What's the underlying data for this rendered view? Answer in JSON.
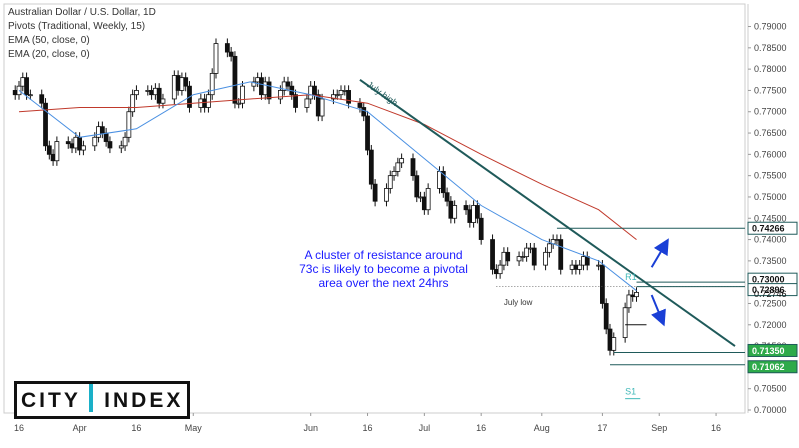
{
  "legend": {
    "symbol": "Australian Dollar / U.S. Dollar, 1D",
    "pivots": "Pivots (Traditional, Weekly, 15)",
    "ema50": "EMA (50, close, 0)",
    "ema20": "EMA (20, close, 0)"
  },
  "annotation_text": "A cluster of resistance around 73c is likely to become a pivotal area over the next 24hrs",
  "logo": {
    "word1": "CITY",
    "word2": "INDEX"
  },
  "colors": {
    "bull": "#ffffff",
    "bear": "#111111",
    "ema50": "#c0392b",
    "ema20": "#4a90e2",
    "trend": "#1f5a5a",
    "level_box": "#1f5a5a",
    "note": "#1a1aff",
    "arrow": "#1a3fd6",
    "pivot_label": "#3fb8b8"
  },
  "chart_data": {
    "type": "candlestick",
    "title": "Australian Dollar / U.S. Dollar, 1D",
    "y_range": [
      0.7,
      0.792
    ],
    "y_ticks": [
      "0.79000",
      "0.78500",
      "0.78000",
      "0.77500",
      "0.77000",
      "0.76500",
      "0.76000",
      "0.75500",
      "0.75000",
      "0.74500",
      "0.74000",
      "0.73500",
      "0.73000",
      "0.72500",
      "0.72000",
      "0.71500",
      "0.71000",
      "0.70500",
      "0.70000"
    ],
    "x_ticks": [
      {
        "date": "2021-03-16",
        "label": "16"
      },
      {
        "date": "2021-04-01",
        "label": "Apr"
      },
      {
        "date": "2021-04-16",
        "label": "16"
      },
      {
        "date": "2021-05-01",
        "label": "May"
      },
      {
        "date": "2021-06-01",
        "label": "Jun"
      },
      {
        "date": "2021-06-16",
        "label": "16"
      },
      {
        "date": "2021-07-01",
        "label": "Jul"
      },
      {
        "date": "2021-07-16",
        "label": "16"
      },
      {
        "date": "2021-08-01",
        "label": "Aug"
      },
      {
        "date": "2021-08-17",
        "label": "17"
      },
      {
        "date": "2021-09-01",
        "label": "Sep"
      },
      {
        "date": "2021-09-16",
        "label": "16"
      }
    ],
    "x_range": [
      "2021-03-16",
      "2021-09-21"
    ],
    "close_series": [
      [
        "2021-03-12",
        0.775
      ],
      [
        "2021-03-15",
        0.774
      ],
      [
        "2021-03-16",
        0.776
      ],
      [
        "2021-03-17",
        0.778
      ],
      [
        "2021-03-18",
        0.774
      ],
      [
        "2021-03-19",
        0.774
      ],
      [
        "2021-03-22",
        0.772
      ],
      [
        "2021-03-23",
        0.762
      ],
      [
        "2021-03-24",
        0.76
      ],
      [
        "2021-03-25",
        0.7585
      ],
      [
        "2021-03-26",
        0.763
      ],
      [
        "2021-03-29",
        0.7625
      ],
      [
        "2021-03-30",
        0.7615
      ],
      [
        "2021-03-31",
        0.764
      ],
      [
        "2021-04-01",
        0.761
      ],
      [
        "2021-04-02",
        0.762
      ],
      [
        "2021-04-05",
        0.764
      ],
      [
        "2021-04-06",
        0.7665
      ],
      [
        "2021-04-07",
        0.765
      ],
      [
        "2021-04-08",
        0.763
      ],
      [
        "2021-04-09",
        0.7615
      ],
      [
        "2021-04-12",
        0.762
      ],
      [
        "2021-04-13",
        0.764
      ],
      [
        "2021-04-14",
        0.77
      ],
      [
        "2021-04-15",
        0.774
      ],
      [
        "2021-04-16",
        0.775
      ],
      [
        "2021-04-19",
        0.775
      ],
      [
        "2021-04-20",
        0.774
      ],
      [
        "2021-04-21",
        0.7755
      ],
      [
        "2021-04-22",
        0.772
      ],
      [
        "2021-04-23",
        0.773
      ],
      [
        "2021-04-26",
        0.7785
      ],
      [
        "2021-04-27",
        0.775
      ],
      [
        "2021-04-28",
        0.778
      ],
      [
        "2021-04-29",
        0.776
      ],
      [
        "2021-04-30",
        0.771
      ],
      [
        "2021-05-03",
        0.773
      ],
      [
        "2021-05-04",
        0.771
      ],
      [
        "2021-05-05",
        0.774
      ],
      [
        "2021-05-06",
        0.779
      ],
      [
        "2021-05-07",
        0.786
      ],
      [
        "2021-05-10",
        0.784
      ],
      [
        "2021-05-11",
        0.783
      ],
      [
        "2021-05-12",
        0.772
      ],
      [
        "2021-05-13",
        0.772
      ],
      [
        "2021-05-14",
        0.776
      ],
      [
        "2021-05-17",
        0.777
      ],
      [
        "2021-05-18",
        0.778
      ],
      [
        "2021-05-19",
        0.774
      ],
      [
        "2021-05-20",
        0.777
      ],
      [
        "2021-05-21",
        0.773
      ],
      [
        "2021-05-24",
        0.775
      ],
      [
        "2021-05-25",
        0.777
      ],
      [
        "2021-05-26",
        0.776
      ],
      [
        "2021-05-27",
        0.774
      ],
      [
        "2021-05-28",
        0.771
      ],
      [
        "2021-05-31",
        0.773
      ],
      [
        "2021-06-01",
        0.776
      ],
      [
        "2021-06-02",
        0.774
      ],
      [
        "2021-06-03",
        0.769
      ],
      [
        "2021-06-04",
        0.773
      ],
      [
        "2021-06-07",
        0.774
      ],
      [
        "2021-06-08",
        0.774
      ],
      [
        "2021-06-09",
        0.775
      ],
      [
        "2021-06-10",
        0.775
      ],
      [
        "2021-06-11",
        0.772
      ],
      [
        "2021-06-14",
        0.771
      ],
      [
        "2021-06-15",
        0.769
      ],
      [
        "2021-06-16",
        0.761
      ],
      [
        "2021-06-17",
        0.753
      ],
      [
        "2021-06-18",
        0.749
      ],
      [
        "2021-06-21",
        0.752
      ],
      [
        "2021-06-22",
        0.755
      ],
      [
        "2021-06-23",
        0.756
      ],
      [
        "2021-06-24",
        0.758
      ],
      [
        "2021-06-25",
        0.759
      ],
      [
        "2021-06-28",
        0.755
      ],
      [
        "2021-06-29",
        0.75
      ],
      [
        "2021-06-30",
        0.75
      ],
      [
        "2021-07-01",
        0.747
      ],
      [
        "2021-07-02",
        0.752
      ],
      [
        "2021-07-05",
        0.756
      ],
      [
        "2021-07-06",
        0.751
      ],
      [
        "2021-07-07",
        0.749
      ],
      [
        "2021-07-08",
        0.745
      ],
      [
        "2021-07-09",
        0.748
      ],
      [
        "2021-07-12",
        0.747
      ],
      [
        "2021-07-13",
        0.744
      ],
      [
        "2021-07-14",
        0.748
      ],
      [
        "2021-07-15",
        0.745
      ],
      [
        "2021-07-16",
        0.74
      ],
      [
        "2021-07-19",
        0.733
      ],
      [
        "2021-07-20",
        0.732
      ],
      [
        "2021-07-21",
        0.734
      ],
      [
        "2021-07-22",
        0.737
      ],
      [
        "2021-07-23",
        0.735
      ],
      [
        "2021-07-26",
        0.736
      ],
      [
        "2021-07-27",
        0.736
      ],
      [
        "2021-07-28",
        0.738
      ],
      [
        "2021-07-29",
        0.738
      ],
      [
        "2021-07-30",
        0.734
      ],
      [
        "2021-08-02",
        0.737
      ],
      [
        "2021-08-03",
        0.739
      ],
      [
        "2021-08-04",
        0.74
      ],
      [
        "2021-08-05",
        0.74
      ],
      [
        "2021-08-06",
        0.733
      ],
      [
        "2021-08-09",
        0.734
      ],
      [
        "2021-08-10",
        0.733
      ],
      [
        "2021-08-11",
        0.734
      ],
      [
        "2021-08-12",
        0.736
      ],
      [
        "2021-08-13",
        0.734
      ],
      [
        "2021-08-16",
        0.734
      ],
      [
        "2021-08-17",
        0.725
      ],
      [
        "2021-08-18",
        0.719
      ],
      [
        "2021-08-19",
        0.714
      ],
      [
        "2021-08-20",
        0.717
      ],
      [
        "2021-08-23",
        0.724
      ],
      [
        "2021-08-24",
        0.727
      ],
      [
        "2021-08-25",
        0.7266
      ],
      [
        "2021-08-26",
        0.7276
      ]
    ],
    "ema50_points": [
      [
        "2021-03-16",
        0.77
      ],
      [
        "2021-04-01",
        0.771
      ],
      [
        "2021-04-16",
        0.771
      ],
      [
        "2021-05-01",
        0.772
      ],
      [
        "2021-05-16",
        0.773
      ],
      [
        "2021-06-01",
        0.774
      ],
      [
        "2021-06-16",
        0.772
      ],
      [
        "2021-07-01",
        0.767
      ],
      [
        "2021-07-16",
        0.76
      ],
      [
        "2021-08-01",
        0.753
      ],
      [
        "2021-08-16",
        0.747
      ],
      [
        "2021-08-26",
        0.74
      ]
    ],
    "ema20_points": [
      [
        "2021-03-16",
        0.775
      ],
      [
        "2021-04-01",
        0.764
      ],
      [
        "2021-04-16",
        0.766
      ],
      [
        "2021-05-01",
        0.774
      ],
      [
        "2021-05-16",
        0.777
      ],
      [
        "2021-06-01",
        0.774
      ],
      [
        "2021-06-16",
        0.77
      ],
      [
        "2021-07-01",
        0.759
      ],
      [
        "2021-07-16",
        0.748
      ],
      [
        "2021-08-01",
        0.74
      ],
      [
        "2021-08-16",
        0.735
      ],
      [
        "2021-08-26",
        0.728
      ]
    ],
    "trendline": [
      [
        "2021-06-14",
        0.7775
      ],
      [
        "2021-09-21",
        0.715
      ]
    ],
    "trendline_label": "July high",
    "price_boxes": [
      {
        "value": 0.74266,
        "label": "0.74266",
        "start": "2021-08-05"
      },
      {
        "value": 0.73,
        "label": "0.73000",
        "start": "2021-08-26"
      },
      {
        "value": 0.72896,
        "label": "0.72896",
        "start": "2021-08-26"
      },
      {
        "value": 0.7135,
        "label": "0.71350",
        "start": "2021-08-20"
      },
      {
        "value": 0.71062,
        "label": "0.71062",
        "start": "2021-08-19"
      }
    ],
    "current_price": {
      "value": 0.72746,
      "label": "0.72746"
    },
    "dotted_levels": [
      {
        "value": 0.72896,
        "start": "2021-07-20"
      },
      {
        "value": 0.7135,
        "start": "2021-08-20"
      }
    ],
    "pivot_labels": [
      {
        "text": "R1",
        "value": 0.7305,
        "date": "2021-08-23"
      },
      {
        "text": "S1",
        "value": 0.7036,
        "date": "2021-08-23"
      }
    ],
    "pivot_line": {
      "value": 0.7036,
      "start": "2021-08-23",
      "end": "2021-08-27"
    },
    "july_low_label": {
      "text": "July low",
      "value": 0.7275,
      "date": "2021-07-22"
    },
    "arrows": [
      {
        "from": [
          "2021-08-30",
          0.7335
        ],
        "to": [
          "2021-09-03",
          0.7395
        ]
      },
      {
        "from": [
          "2021-08-30",
          0.727
        ],
        "to": [
          "2021-09-02",
          0.7205
        ]
      }
    ],
    "horizontal_marker": {
      "value": 0.72,
      "start": "2021-08-23",
      "end": "2021-08-26"
    }
  }
}
